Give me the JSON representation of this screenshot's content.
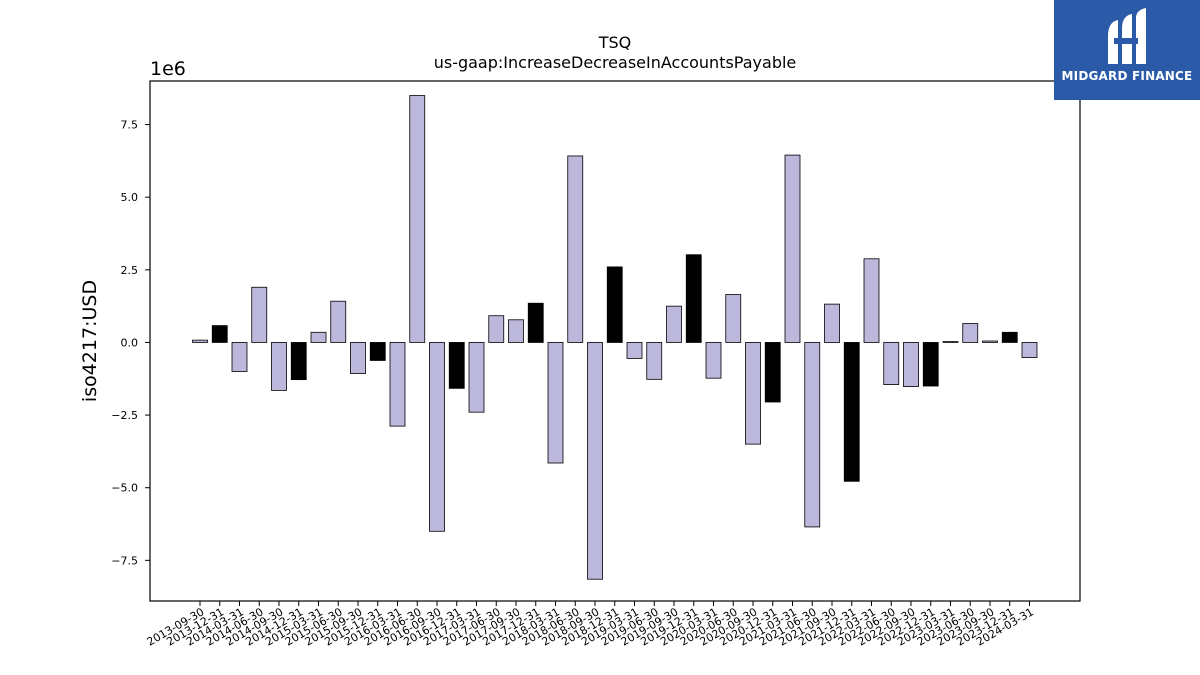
{
  "chart_data": {
    "type": "bar",
    "title": "TSQ",
    "subtitle": "us-gaap:IncreaseDecreaseInAccountsPayable",
    "ylabel": "iso4217:USD",
    "xlabel": "",
    "offset_label": "1e6",
    "ylim": [
      -8.9,
      9.0
    ],
    "yticks": [
      -7.5,
      -5.0,
      -2.5,
      0.0,
      2.5,
      5.0,
      7.5
    ],
    "ytick_labels": [
      "−7.5",
      "−5.0",
      "−2.5",
      "0.0",
      "2.5",
      "5.0",
      "7.5"
    ],
    "categories": [
      "2013-09-30",
      "2013-12-31",
      "2014-03-31",
      "2014-06-30",
      "2014-09-30",
      "2014-12-31",
      "2015-03-31",
      "2015-06-30",
      "2015-09-30",
      "2015-12-31",
      "2016-03-31",
      "2016-06-30",
      "2016-09-30",
      "2016-12-31",
      "2017-03-31",
      "2017-06-30",
      "2017-09-30",
      "2017-12-31",
      "2018-03-31",
      "2018-06-30",
      "2018-09-30",
      "2018-12-31",
      "2019-03-31",
      "2019-06-30",
      "2019-09-30",
      "2019-12-31",
      "2020-03-31",
      "2020-06-30",
      "2020-09-30",
      "2020-12-31",
      "2021-03-31",
      "2021-06-30",
      "2021-09-30",
      "2021-12-31",
      "2022-03-31",
      "2022-06-30",
      "2022-09-30",
      "2022-12-31",
      "2023-03-31",
      "2023-06-30",
      "2023-09-30",
      "2023-12-31",
      "2024-03-31"
    ],
    "values": [
      0.08,
      0.58,
      -1.0,
      1.9,
      -1.65,
      -1.28,
      0.35,
      1.42,
      -1.07,
      -0.62,
      -2.88,
      8.5,
      -6.5,
      -1.58,
      -2.4,
      0.92,
      0.78,
      1.35,
      -4.15,
      6.42,
      -8.15,
      2.6,
      -0.55,
      -1.27,
      1.25,
      3.02,
      -1.23,
      1.65,
      -3.5,
      -2.05,
      6.45,
      -6.35,
      1.32,
      -4.78,
      2.88,
      -1.45,
      -1.52,
      -1.5,
      0.03,
      0.65,
      0.05,
      0.35,
      -0.52
    ],
    "annual": [
      false,
      true,
      false,
      false,
      false,
      true,
      false,
      false,
      false,
      true,
      false,
      false,
      false,
      true,
      false,
      false,
      false,
      true,
      false,
      false,
      false,
      true,
      false,
      false,
      false,
      true,
      false,
      false,
      false,
      true,
      false,
      false,
      false,
      true,
      false,
      false,
      false,
      true,
      false,
      false,
      false,
      true,
      false
    ],
    "colors": {
      "quarterly": "#bcb8db",
      "annual": "#000000",
      "edge": "#000000"
    },
    "grid": false,
    "legend": "none"
  },
  "logo": {
    "text": "MIDGARD FINANCE",
    "color": "#2a5aa8"
  }
}
